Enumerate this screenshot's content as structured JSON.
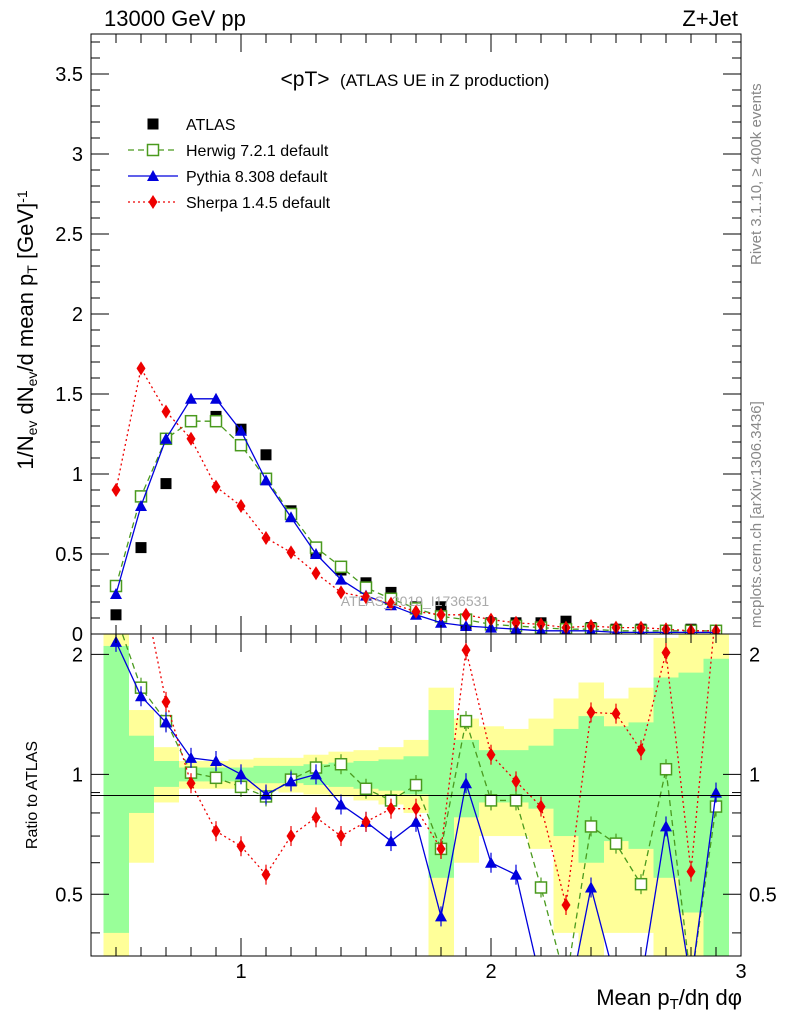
{
  "header": {
    "left": "13000 GeV pp",
    "right": "Z+Jet"
  },
  "side": {
    "upper": "Rivet 3.1.10, ≥ 400k events",
    "lower": "mcplots.cern.ch [arXiv:1306.3436]"
  },
  "chart_data": {
    "type": "scatter",
    "title_main": "<pT>",
    "title_sub": "(ATLAS UE in Z production)",
    "watermark": "ATLAS_2019_I1736531",
    "ylabel_parts": [
      "1/N",
      "ev",
      " dN",
      "ev",
      "/d mean p",
      "T",
      " [GeV]",
      "-1"
    ],
    "xlabel_parts": [
      "Mean p",
      "T",
      "/dη dφ"
    ],
    "ratio_ylabel": "Ratio to ATLAS",
    "xlim": [
      0.4,
      3.0
    ],
    "ylim": [
      0,
      3.75
    ],
    "ratio_ylim": [
      0.35,
      2.25
    ],
    "x_major_ticks": [
      1,
      2,
      3
    ],
    "x_tick_labels": [
      "1",
      "2",
      "3"
    ],
    "y_major_ticks": [
      0,
      0.5,
      1,
      1.5,
      2,
      2.5,
      3,
      3.5
    ],
    "y_tick_labels": [
      "0",
      "0.5",
      "1",
      "1.5",
      "2",
      "2.5",
      "3",
      "3.5"
    ],
    "ratio_y_ticks": [
      0.5,
      1,
      2
    ],
    "ratio_y_labels": [
      "0.5",
      "1",
      "2"
    ],
    "x": [
      0.5,
      0.6,
      0.7,
      0.8,
      0.9,
      1.0,
      1.1,
      1.2,
      1.3,
      1.4,
      1.5,
      1.6,
      1.7,
      1.8,
      1.9,
      2.0,
      2.1,
      2.2,
      2.3,
      2.4,
      2.5,
      2.6,
      2.7,
      2.8,
      2.9
    ],
    "series": [
      {
        "name": "ATLAS",
        "marker": "square-filled",
        "color": "#000000",
        "values": [
          0.12,
          0.54,
          0.94,
          1.33,
          1.36,
          1.28,
          1.12,
          0.77,
          0.51,
          0.4,
          0.32,
          0.26,
          0.17,
          0.17,
          0.06,
          0.07,
          0.07,
          0.07,
          0.08,
          0.04,
          0.03,
          0.03,
          0.02,
          0.03,
          0.02
        ]
      },
      {
        "name": "Herwig 7.2.1 default",
        "marker": "square-open",
        "color": "#4a9a1e",
        "dash": "6,4",
        "values": [
          0.3,
          0.86,
          1.22,
          1.33,
          1.33,
          1.18,
          0.97,
          0.75,
          0.54,
          0.42,
          0.29,
          0.22,
          0.16,
          0.11,
          0.09,
          0.06,
          0.05,
          0.04,
          0.03,
          0.03,
          0.02,
          0.02,
          0.02,
          0.02,
          0.02
        ],
        "ratio": [
          2.5,
          1.65,
          1.36,
          1.01,
          0.98,
          0.93,
          0.88,
          0.97,
          1.04,
          1.06,
          0.92,
          0.86,
          0.94,
          0.65,
          1.36,
          0.86,
          0.86,
          0.52,
          0.3,
          0.74,
          0.67,
          0.53,
          1.03,
          0.3,
          0.83
        ]
      },
      {
        "name": "Pythia 8.308 default",
        "marker": "triangle-filled",
        "color": "#0000dd",
        "dash": "",
        "values": [
          0.25,
          0.8,
          1.22,
          1.47,
          1.47,
          1.27,
          0.96,
          0.73,
          0.5,
          0.34,
          0.24,
          0.18,
          0.12,
          0.07,
          0.05,
          0.04,
          0.03,
          0.02,
          0.02,
          0.02,
          0.01,
          0.01,
          0.01,
          0.01,
          0.01
        ],
        "ratio": [
          2.15,
          1.57,
          1.35,
          1.1,
          1.08,
          1.0,
          0.89,
          0.96,
          1.0,
          0.84,
          0.76,
          0.68,
          0.76,
          0.44,
          0.95,
          0.6,
          0.56,
          0.3,
          0.25,
          0.52,
          0.3,
          0.3,
          0.74,
          0.3,
          0.9
        ]
      },
      {
        "name": "Sherpa 1.4.5 default",
        "marker": "diamond-filled",
        "color": "#ee0000",
        "dash": "2,3",
        "values": [
          0.9,
          1.66,
          1.39,
          1.22,
          0.92,
          0.8,
          0.6,
          0.51,
          0.38,
          0.26,
          0.23,
          0.19,
          0.14,
          0.12,
          0.12,
          0.09,
          0.07,
          0.06,
          0.04,
          0.05,
          0.04,
          0.04,
          0.03,
          0.02,
          0.02
        ],
        "ratio": [
          7.3,
          3.1,
          1.52,
          0.95,
          0.72,
          0.66,
          0.56,
          0.7,
          0.78,
          0.7,
          0.76,
          0.82,
          0.82,
          0.65,
          2.05,
          1.12,
          0.96,
          0.83,
          0.47,
          1.43,
          1.42,
          1.15,
          2.02,
          0.57,
          2.6
        ]
      }
    ],
    "ratio_bands": {
      "green": [
        [
          0.4,
          2.1
        ],
        [
          0.8,
          1.25
        ],
        [
          0.93,
          1.08
        ],
        [
          0.96,
          1.04
        ],
        [
          0.96,
          1.04
        ],
        [
          0.96,
          1.04
        ],
        [
          0.95,
          1.05
        ],
        [
          0.95,
          1.05
        ],
        [
          0.94,
          1.06
        ],
        [
          0.93,
          1.07
        ],
        [
          0.92,
          1.08
        ],
        [
          0.91,
          1.09
        ],
        [
          0.89,
          1.11
        ],
        [
          0.55,
          1.45
        ],
        [
          0.78,
          1.22
        ],
        [
          0.85,
          1.15
        ],
        [
          0.85,
          1.15
        ],
        [
          0.82,
          1.18
        ],
        [
          0.7,
          1.3
        ],
        [
          0.6,
          1.4
        ],
        [
          0.68,
          1.32
        ],
        [
          0.65,
          1.35
        ],
        [
          0.55,
          1.75
        ],
        [
          0.45,
          1.8
        ],
        [
          0.35,
          1.95
        ]
      ],
      "yellow": [
        [
          0.3,
          2.3
        ],
        [
          0.6,
          1.45
        ],
        [
          0.85,
          1.17
        ],
        [
          0.92,
          1.08
        ],
        [
          0.92,
          1.08
        ],
        [
          0.92,
          1.09
        ],
        [
          0.91,
          1.1
        ],
        [
          0.9,
          1.1
        ],
        [
          0.89,
          1.12
        ],
        [
          0.88,
          1.14
        ],
        [
          0.86,
          1.15
        ],
        [
          0.84,
          1.17
        ],
        [
          0.8,
          1.22
        ],
        [
          0.35,
          1.65
        ],
        [
          0.6,
          1.38
        ],
        [
          0.7,
          1.32
        ],
        [
          0.7,
          1.3
        ],
        [
          0.65,
          1.38
        ],
        [
          0.4,
          1.55
        ],
        [
          0.3,
          1.7
        ],
        [
          0.4,
          1.55
        ],
        [
          0.4,
          1.65
        ],
        [
          0.3,
          2.2
        ],
        [
          0.25,
          2.3
        ],
        [
          0.2,
          2.4
        ]
      ]
    }
  }
}
